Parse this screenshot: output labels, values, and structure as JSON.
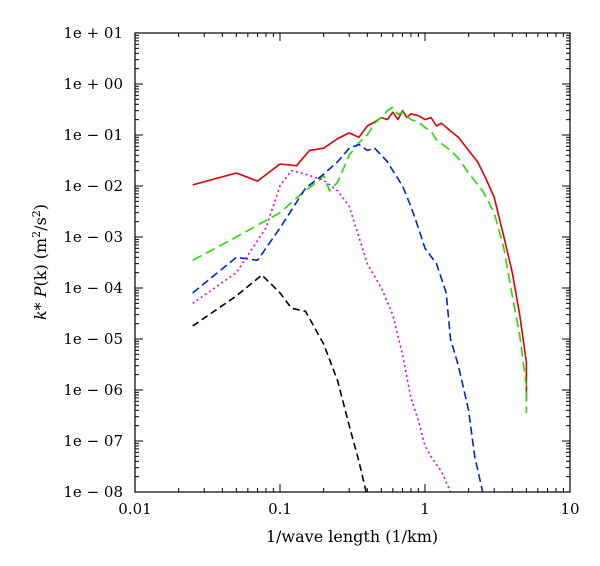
{
  "chart_data": {
    "type": "line",
    "xlabel": "1/wave length (1/km)",
    "ylabel": "k* P(k) (m²/s²)",
    "ylabel_parts": {
      "k": "k",
      "star": "* ",
      "P": "P",
      "rest": "(k) (m",
      "sup": "2",
      "slash": "/s",
      "sup2": "2",
      "close": ")"
    },
    "x_scale": "log",
    "y_scale": "log",
    "xlim": [
      0.01,
      10
    ],
    "ylim": [
      1e-08,
      10
    ],
    "x_ticks": [
      {
        "value": 0.01,
        "label": "0.01"
      },
      {
        "value": 0.1,
        "label": "0.1"
      },
      {
        "value": 1,
        "label": "1"
      },
      {
        "value": 10,
        "label": "10"
      }
    ],
    "y_ticks": [
      {
        "value": 1e-08,
        "label": "1e − 08"
      },
      {
        "value": 1e-07,
        "label": "1e − 07"
      },
      {
        "value": 1e-06,
        "label": "1e − 06"
      },
      {
        "value": 1e-05,
        "label": "1e − 05"
      },
      {
        "value": 0.0001,
        "label": "1e − 04"
      },
      {
        "value": 0.001,
        "label": "1e − 03"
      },
      {
        "value": 0.01,
        "label": "1e − 02"
      },
      {
        "value": 0.1,
        "label": "1e − 01"
      },
      {
        "value": 1,
        "label": "1e + 00"
      },
      {
        "value": 10,
        "label": "1e + 01"
      }
    ],
    "grid": false,
    "series": [
      {
        "color": "#e00000",
        "dash": "solid",
        "points": [
          [
            0.025,
            0.0105
          ],
          [
            0.05,
            0.018
          ],
          [
            0.07,
            0.0125
          ],
          [
            0.1,
            0.027
          ],
          [
            0.13,
            0.025
          ],
          [
            0.16,
            0.05
          ],
          [
            0.2,
            0.055
          ],
          [
            0.25,
            0.085
          ],
          [
            0.3,
            0.11
          ],
          [
            0.35,
            0.09
          ],
          [
            0.4,
            0.15
          ],
          [
            0.45,
            0.18
          ],
          [
            0.5,
            0.22
          ],
          [
            0.55,
            0.2
          ],
          [
            0.6,
            0.28
          ],
          [
            0.65,
            0.2
          ],
          [
            0.7,
            0.3
          ],
          [
            0.75,
            0.22
          ],
          [
            0.8,
            0.26
          ],
          [
            0.9,
            0.24
          ],
          [
            1.0,
            0.2
          ],
          [
            1.1,
            0.22
          ],
          [
            1.2,
            0.15
          ],
          [
            1.3,
            0.17
          ],
          [
            1.5,
            0.12
          ],
          [
            1.7,
            0.09
          ],
          [
            2.0,
            0.05
          ],
          [
            2.3,
            0.03
          ],
          [
            2.6,
            0.015
          ],
          [
            3.0,
            0.006
          ],
          [
            3.5,
            0.001
          ],
          [
            4.0,
            0.0002
          ],
          [
            4.5,
            3e-05
          ],
          [
            5.0,
            3.5e-06
          ],
          [
            5.0,
            6e-07
          ]
        ]
      },
      {
        "color": "#22dd00",
        "dash": "10,5",
        "points": [
          [
            0.025,
            0.00035
          ],
          [
            0.05,
            0.001
          ],
          [
            0.1,
            0.003
          ],
          [
            0.14,
            0.007
          ],
          [
            0.18,
            0.012
          ],
          [
            0.2,
            0.016
          ],
          [
            0.22,
            0.008
          ],
          [
            0.25,
            0.012
          ],
          [
            0.3,
            0.04
          ],
          [
            0.35,
            0.07
          ],
          [
            0.4,
            0.1
          ],
          [
            0.45,
            0.17
          ],
          [
            0.5,
            0.22
          ],
          [
            0.55,
            0.3
          ],
          [
            0.6,
            0.35
          ],
          [
            0.65,
            0.25
          ],
          [
            0.7,
            0.28
          ],
          [
            0.8,
            0.2
          ],
          [
            0.9,
            0.18
          ],
          [
            1.0,
            0.14
          ],
          [
            1.1,
            0.12
          ],
          [
            1.2,
            0.08
          ],
          [
            1.5,
            0.05
          ],
          [
            1.7,
            0.035
          ],
          [
            2.0,
            0.018
          ],
          [
            2.5,
            0.008
          ],
          [
            3.0,
            0.003
          ],
          [
            3.5,
            0.0006
          ],
          [
            4.0,
            7e-05
          ],
          [
            4.5,
            1.2e-05
          ],
          [
            5.0,
            1.2e-06
          ],
          [
            5.0,
            3.5e-07
          ]
        ]
      },
      {
        "color": "#0022dd",
        "dash": "8,4",
        "points": [
          [
            0.025,
            8e-05
          ],
          [
            0.05,
            0.0004
          ],
          [
            0.07,
            0.00035
          ],
          [
            0.1,
            0.0015
          ],
          [
            0.15,
            0.009
          ],
          [
            0.2,
            0.017
          ],
          [
            0.25,
            0.03
          ],
          [
            0.3,
            0.055
          ],
          [
            0.35,
            0.065
          ],
          [
            0.4,
            0.05
          ],
          [
            0.45,
            0.055
          ],
          [
            0.5,
            0.04
          ],
          [
            0.55,
            0.03
          ],
          [
            0.6,
            0.02
          ],
          [
            0.7,
            0.01
          ],
          [
            0.8,
            0.004
          ],
          [
            0.9,
            0.0015
          ],
          [
            1.0,
            0.0006
          ],
          [
            1.2,
            0.0003
          ],
          [
            1.4,
            8e-05
          ],
          [
            1.5,
            1e-05
          ],
          [
            1.7,
            3e-06
          ],
          [
            2.0,
            4e-07
          ],
          [
            2.2,
            5e-08
          ],
          [
            2.5,
            1e-08
          ]
        ]
      },
      {
        "color": "#e000e0",
        "dash": "2,3",
        "points": [
          [
            0.025,
            5e-05
          ],
          [
            0.05,
            0.0002
          ],
          [
            0.08,
            0.0015
          ],
          [
            0.1,
            0.01
          ],
          [
            0.12,
            0.02
          ],
          [
            0.15,
            0.017
          ],
          [
            0.2,
            0.013
          ],
          [
            0.25,
            0.008
          ],
          [
            0.3,
            0.004
          ],
          [
            0.35,
            0.001
          ],
          [
            0.4,
            0.0003
          ],
          [
            0.5,
            0.0001
          ],
          [
            0.6,
            3e-05
          ],
          [
            0.7,
            5e-06
          ],
          [
            0.8,
            7e-07
          ],
          [
            0.9,
            2.5e-07
          ],
          [
            1.0,
            8e-08
          ],
          [
            1.1,
            5e-08
          ],
          [
            1.3,
            2.5e-08
          ],
          [
            1.5,
            1e-08
          ]
        ]
      },
      {
        "color": "#000000",
        "dash": "7,4",
        "points": [
          [
            0.025,
            1.8e-05
          ],
          [
            0.05,
            7e-05
          ],
          [
            0.075,
            0.00018
          ],
          [
            0.1,
            8e-05
          ],
          [
            0.12,
            4e-05
          ],
          [
            0.15,
            3.5e-05
          ],
          [
            0.2,
            8e-06
          ],
          [
            0.25,
            1.5e-06
          ],
          [
            0.3,
            2e-07
          ],
          [
            0.35,
            4e-08
          ],
          [
            0.4,
            8e-09
          ]
        ]
      }
    ]
  }
}
